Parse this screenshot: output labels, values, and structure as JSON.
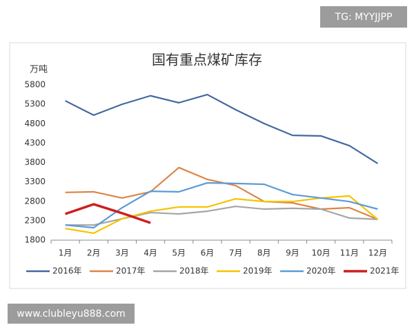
{
  "watermark_top": "TG: MYYJJPP",
  "watermark_bottom": "www.clubleyu888.com",
  "chart_data": {
    "type": "line",
    "title": "国有重点煤矿库存",
    "ylabel": "万吨",
    "categories": [
      "1月",
      "2月",
      "3月",
      "4月",
      "5月",
      "6月",
      "7月",
      "8月",
      "9月",
      "10月",
      "11月",
      "12月"
    ],
    "ylim": [
      1800,
      5800
    ],
    "yticks": [
      1800,
      2300,
      2800,
      3300,
      3800,
      4300,
      4800,
      5300,
      5800
    ],
    "grid": false,
    "legend": "bottom",
    "series": [
      {
        "name": "2016年",
        "color": "#44679f",
        "values": [
          5390,
          5020,
          5300,
          5520,
          5340,
          5550,
          5160,
          4805,
          4500,
          4485,
          4235,
          3775
        ]
      },
      {
        "name": "2017年",
        "color": "#dd8444",
        "values": [
          3030,
          3045,
          2885,
          3045,
          3670,
          3365,
          3205,
          2795,
          2760,
          2600,
          2635,
          2335
        ]
      },
      {
        "name": "2018年",
        "color": "#a5a5a5",
        "values": [
          2190,
          2190,
          2350,
          2510,
          2475,
          2545,
          2670,
          2600,
          2620,
          2600,
          2370,
          2335
        ]
      },
      {
        "name": "2019年",
        "color": "#f5c400",
        "values": [
          2100,
          1980,
          2350,
          2545,
          2655,
          2655,
          2865,
          2795,
          2795,
          2885,
          2940,
          2335
        ]
      },
      {
        "name": "2020年",
        "color": "#5b9bd5",
        "values": [
          2190,
          2120,
          2635,
          3060,
          3045,
          3275,
          3260,
          3240,
          2975,
          2885,
          2795,
          2600
        ]
      },
      {
        "name": "2021年",
        "color": "#cc1f1f",
        "width": 3.5,
        "values": [
          2475,
          2725,
          2495,
          2245,
          null,
          null,
          null,
          null,
          null,
          null,
          null,
          null
        ]
      }
    ]
  }
}
